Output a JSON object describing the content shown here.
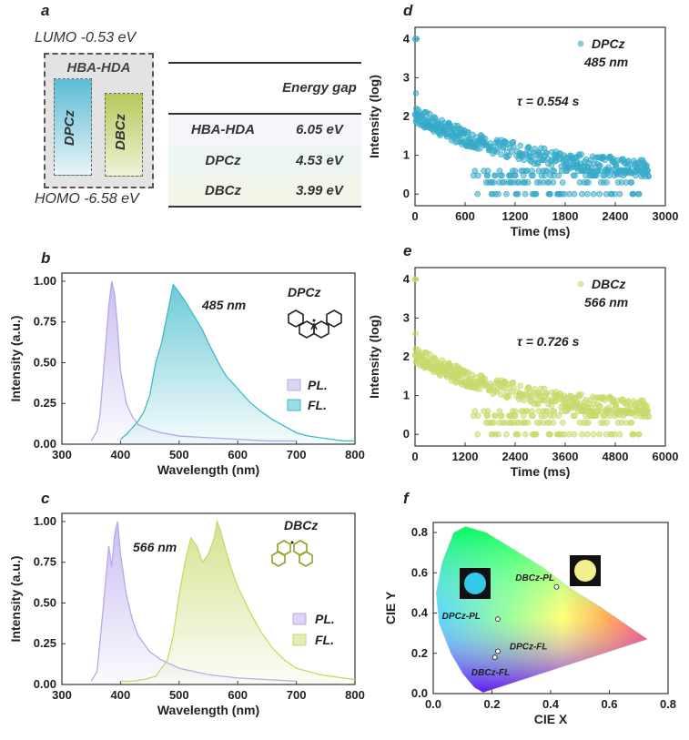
{
  "panels": {
    "a": {
      "label": "a",
      "lumo": "LUMO -0.53 eV",
      "homo": "HOMO -6.58 eV",
      "box_title": "HBA-HDA",
      "bar1": "DPCz",
      "bar2": "DBCz",
      "table": {
        "header": "Energy gap",
        "rows": [
          {
            "name": "HBA-HDA",
            "value": "6.05 eV"
          },
          {
            "name": "DPCz",
            "value": "4.53 eV"
          },
          {
            "name": "DBCz",
            "value": "3.99 eV"
          }
        ]
      }
    },
    "b": {
      "label": "b",
      "peak_label": "485 nm",
      "molecule": "DPCz",
      "legend": [
        "PL.",
        "FL."
      ]
    },
    "c": {
      "label": "c",
      "peak_label": "566 nm",
      "molecule": "DBCz",
      "legend": [
        "PL.",
        "FL."
      ]
    },
    "d": {
      "label": "d",
      "legend_name": "DPCz",
      "legend_wavelength": "485 nm",
      "tau": "τ = 0.554 s"
    },
    "e": {
      "label": "e",
      "legend_name": "DBCz",
      "legend_wavelength": "566 nm",
      "tau": "τ = 0.726 s"
    },
    "f": {
      "label": "f",
      "point_labels": [
        "DBCz-PL",
        "DPCz-PL",
        "DPCz-FL",
        "DBCz-FL"
      ]
    }
  },
  "colors": {
    "pl_purple": "#b9a8ec",
    "fl_cyan": "#3fb9c9",
    "dbcz_green": "#c9d86a",
    "dpcz_decay": "#35a9c9"
  },
  "chart_data": [
    {
      "id": "b",
      "type": "area",
      "xlabel": "Wavelength (nm)",
      "ylabel": "Intensity (a.u.)",
      "xlim": [
        300,
        800
      ],
      "ylim": [
        0,
        1.05
      ],
      "xticks": [
        300,
        400,
        500,
        600,
        700,
        800
      ],
      "yticks": [
        0.0,
        0.25,
        0.5,
        0.75,
        1.0
      ],
      "series": [
        {
          "name": "PL.",
          "x": [
            350,
            360,
            365,
            370,
            375,
            380,
            385,
            390,
            395,
            400,
            410,
            420,
            430,
            450,
            470,
            500,
            550,
            600,
            650,
            700
          ],
          "y": [
            0.02,
            0.08,
            0.18,
            0.4,
            0.62,
            0.85,
            1.0,
            0.92,
            0.72,
            0.45,
            0.25,
            0.17,
            0.12,
            0.09,
            0.07,
            0.05,
            0.04,
            0.03,
            0.02,
            0.02
          ]
        },
        {
          "name": "FL.",
          "x": [
            400,
            410,
            420,
            430,
            440,
            450,
            460,
            470,
            480,
            490,
            500,
            510,
            520,
            530,
            540,
            550,
            560,
            570,
            580,
            590,
            600,
            620,
            640,
            660,
            680,
            700,
            720,
            740,
            760,
            780,
            800
          ],
          "y": [
            0.03,
            0.06,
            0.1,
            0.14,
            0.2,
            0.3,
            0.5,
            0.62,
            0.8,
            0.98,
            0.93,
            0.88,
            0.82,
            0.76,
            0.7,
            0.62,
            0.55,
            0.48,
            0.42,
            0.38,
            0.34,
            0.26,
            0.2,
            0.15,
            0.11,
            0.07,
            0.05,
            0.04,
            0.03,
            0.02,
            0.02
          ]
        }
      ]
    },
    {
      "id": "c",
      "type": "area",
      "xlabel": "Wavelength (nm)",
      "ylabel": "Intensity (a.u.)",
      "xlim": [
        300,
        800
      ],
      "ylim": [
        0,
        1.05
      ],
      "xticks": [
        300,
        400,
        500,
        600,
        700,
        800
      ],
      "yticks": [
        0.0,
        0.25,
        0.5,
        0.75,
        1.0
      ],
      "series": [
        {
          "name": "PL.",
          "x": [
            350,
            360,
            370,
            375,
            380,
            385,
            390,
            395,
            400,
            410,
            420,
            430,
            450,
            470,
            500,
            550,
            600,
            650,
            700
          ],
          "y": [
            0.02,
            0.08,
            0.45,
            0.65,
            0.85,
            0.72,
            0.92,
            1.0,
            0.8,
            0.55,
            0.4,
            0.3,
            0.2,
            0.15,
            0.1,
            0.06,
            0.04,
            0.03,
            0.02
          ]
        },
        {
          "name": "FL.",
          "x": [
            400,
            420,
            440,
            460,
            480,
            490,
            500,
            510,
            520,
            530,
            540,
            550,
            560,
            565,
            570,
            580,
            590,
            600,
            620,
            640,
            660,
            680,
            700,
            720,
            740,
            760,
            780,
            800
          ],
          "y": [
            0.02,
            0.02,
            0.03,
            0.05,
            0.15,
            0.3,
            0.55,
            0.75,
            0.9,
            0.85,
            0.75,
            0.8,
            0.9,
            1.0,
            0.95,
            0.82,
            0.7,
            0.6,
            0.45,
            0.32,
            0.22,
            0.15,
            0.1,
            0.08,
            0.06,
            0.05,
            0.04,
            0.03
          ]
        }
      ]
    },
    {
      "id": "d",
      "type": "scatter",
      "xlabel": "Time (ms)",
      "ylabel": "Intensity (log)",
      "xlim": [
        0,
        3000
      ],
      "ylim": [
        -0.3,
        4.3
      ],
      "xticks": [
        0,
        600,
        1200,
        1800,
        2400,
        3000
      ],
      "yticks": [
        0,
        1,
        2,
        3,
        4
      ],
      "decay": {
        "start_time": 0,
        "end_time": 2800,
        "initial": 4.0,
        "tau_s": 0.554
      }
    },
    {
      "id": "e",
      "type": "scatter",
      "xlabel": "Time (ms)",
      "ylabel": "Intensity (log)",
      "xlim": [
        0,
        6000
      ],
      "ylim": [
        -0.3,
        4.3
      ],
      "xticks": [
        0,
        1200,
        2400,
        3600,
        4800,
        6000
      ],
      "yticks": [
        0,
        1,
        2,
        3,
        4
      ],
      "decay": {
        "start_time": 0,
        "end_time": 5600,
        "initial": 4.0,
        "tau_s": 0.726
      }
    },
    {
      "id": "f",
      "type": "scatter",
      "xlabel": "CIE X",
      "ylabel": "CIE Y",
      "xlim": [
        0.0,
        0.8
      ],
      "ylim": [
        0.0,
        0.85
      ],
      "xticks": [
        0.0,
        0.2,
        0.4,
        0.6,
        0.8
      ],
      "yticks": [
        0.0,
        0.2,
        0.4,
        0.6,
        0.8
      ],
      "points": [
        {
          "label": "DBCz-PL",
          "x": 0.42,
          "y": 0.53
        },
        {
          "label": "DPCz-PL",
          "x": 0.22,
          "y": 0.37
        },
        {
          "label": "DPCz-FL",
          "x": 0.22,
          "y": 0.21
        },
        {
          "label": "DBCz-FL",
          "x": 0.21,
          "y": 0.18
        }
      ]
    }
  ]
}
